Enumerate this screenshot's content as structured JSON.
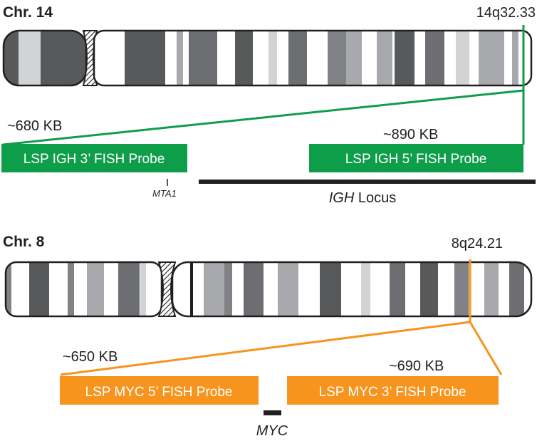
{
  "chr14": {
    "title": "Chr. 14",
    "band": "14q32.33",
    "size_3prime": "~680 KB",
    "size_5prime": "~890 KB",
    "probe_3prime": "LSP IGH 3’ FISH Probe",
    "probe_5prime": "LSP IGH 5’ FISH Probe",
    "gene_marker": "MTA1",
    "locus_gene": "IGH",
    "locus_word": " Locus",
    "color": "#0e9e4a"
  },
  "chr8": {
    "title": "Chr. 8",
    "band": "8q24.21",
    "size_5prime": "~650 KB",
    "size_3prime": "~690 KB",
    "probe_5prime": "LSP MYC 5’ FISH Probe",
    "probe_3prime": "LSP MYC 3’ FISH Probe",
    "gene": "MYC",
    "color": "#f7941d"
  }
}
